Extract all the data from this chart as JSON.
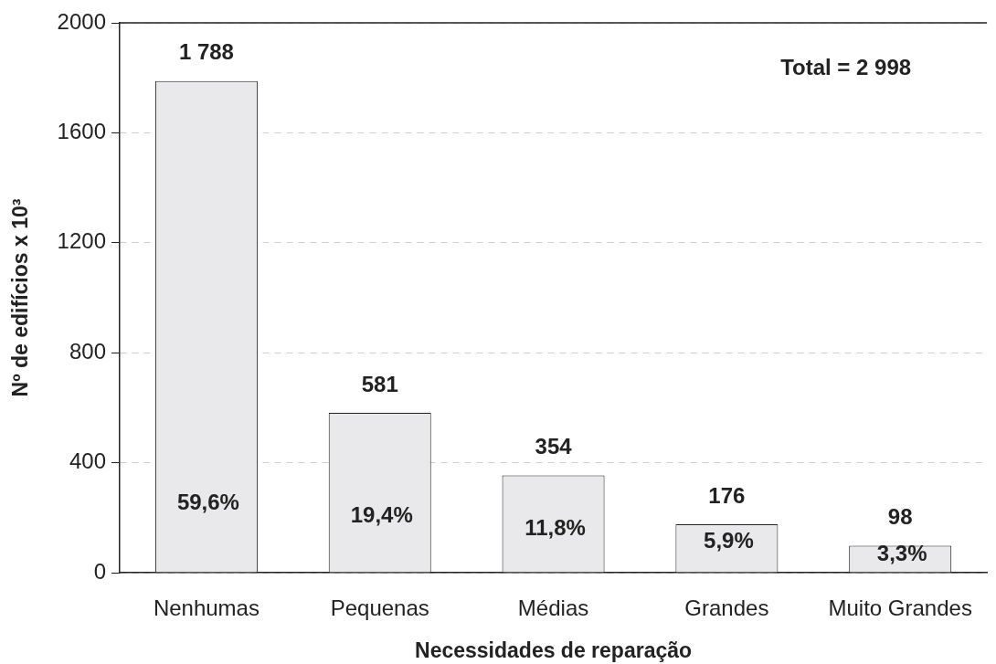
{
  "chart_data": {
    "type": "bar",
    "xlabel": "Necessidades de reparação",
    "ylabel": "Nº de edifícios x 10³",
    "categories": [
      "Nenhumas",
      "Pequenas",
      "Médias",
      "Grandes",
      "Muito Grandes"
    ],
    "values": [
      1788,
      581,
      354,
      176,
      98
    ],
    "value_labels": [
      "1 788",
      "581",
      "354",
      "176",
      "98"
    ],
    "color": "#e9e9eb",
    "ylim": [
      0,
      2000
    ],
    "yticks": [
      0,
      400,
      800,
      1200,
      1600,
      2000
    ],
    "grid": "y",
    "annotations": [
      "Total = 2 998",
      "59,6%",
      "19,4%",
      "11,8%",
      "5,9%",
      "3,3%"
    ]
  }
}
